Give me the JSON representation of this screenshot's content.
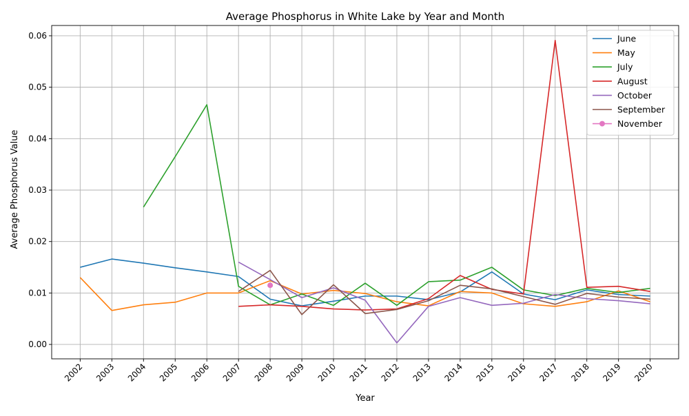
{
  "chart_data": {
    "type": "line",
    "title": "Average Phosphorus in White Lake by Year and Month",
    "xlabel": "Year",
    "ylabel": "Average Phosphorus Value",
    "x": [
      2002,
      2003,
      2004,
      2005,
      2006,
      2007,
      2008,
      2009,
      2010,
      2011,
      2012,
      2013,
      2014,
      2015,
      2016,
      2017,
      2018,
      2019,
      2020
    ],
    "x_tick_labels": [
      "2002",
      "2003",
      "2004",
      "2005",
      "2006",
      "2007",
      "2008",
      "2009",
      "2010",
      "2011",
      "2012",
      "2013",
      "2014",
      "2015",
      "2016",
      "2017",
      "2018",
      "2019",
      "2020"
    ],
    "ylim": [
      -0.0028,
      0.062
    ],
    "y_ticks": [
      0.0,
      0.01,
      0.02,
      0.03,
      0.04,
      0.05,
      0.06
    ],
    "y_tick_labels": [
      "0.00",
      "0.01",
      "0.02",
      "0.03",
      "0.04",
      "0.05",
      "0.06"
    ],
    "grid": true,
    "legend_position": "top-right",
    "series": [
      {
        "name": "June",
        "color": "#1f77b4",
        "marker": false,
        "values": [
          0.015,
          0.0166,
          0.0158,
          0.0149,
          0.0141,
          0.0132,
          0.0088,
          0.0075,
          0.0084,
          0.0094,
          0.0094,
          0.0087,
          0.0102,
          0.0141,
          0.0098,
          0.0087,
          0.0106,
          0.0097,
          0.0094
        ]
      },
      {
        "name": "May",
        "color": "#ff7f0e",
        "marker": false,
        "values": [
          0.013,
          0.0066,
          0.0077,
          0.0082,
          0.01,
          0.01,
          0.0124,
          0.0098,
          0.0105,
          0.0099,
          0.0083,
          0.0075,
          0.0103,
          0.01,
          0.0079,
          0.0074,
          0.0083,
          0.0104,
          0.0083
        ]
      },
      {
        "name": "July",
        "color": "#2ca02c",
        "marker": false,
        "values": [
          null,
          null,
          0.0267,
          0.0365,
          0.0466,
          0.0113,
          0.0077,
          0.0098,
          0.0076,
          0.0119,
          0.0076,
          0.0122,
          0.0125,
          0.015,
          0.0106,
          0.0095,
          0.0109,
          0.0101,
          0.0109
        ]
      },
      {
        "name": "August",
        "color": "#d62728",
        "marker": false,
        "values": [
          null,
          null,
          null,
          null,
          null,
          0.0074,
          0.0077,
          0.0074,
          0.0069,
          0.0067,
          0.0069,
          0.0089,
          0.0134,
          0.0107,
          0.0098,
          0.0591,
          0.0111,
          0.0113,
          0.0103
        ]
      },
      {
        "name": "October",
        "color": "#9467bd",
        "marker": false,
        "values": [
          null,
          null,
          null,
          null,
          null,
          0.016,
          0.0126,
          0.0091,
          0.011,
          0.0086,
          0.0003,
          0.0074,
          0.0091,
          0.0076,
          0.008,
          0.0097,
          0.0089,
          0.0085,
          0.0079
        ]
      },
      {
        "name": "September",
        "color": "#8c564b",
        "marker": false,
        "values": [
          null,
          null,
          null,
          null,
          null,
          0.0103,
          0.0144,
          0.0058,
          0.0116,
          0.006,
          0.0068,
          0.0085,
          0.0115,
          0.0108,
          0.0093,
          0.0078,
          0.0099,
          0.0092,
          0.0088
        ]
      },
      {
        "name": "November",
        "color": "#e377c2",
        "marker": true,
        "values": [
          null,
          null,
          null,
          null,
          null,
          null,
          0.0115,
          null,
          null,
          null,
          null,
          null,
          null,
          null,
          null,
          null,
          null,
          null,
          null
        ]
      }
    ]
  }
}
